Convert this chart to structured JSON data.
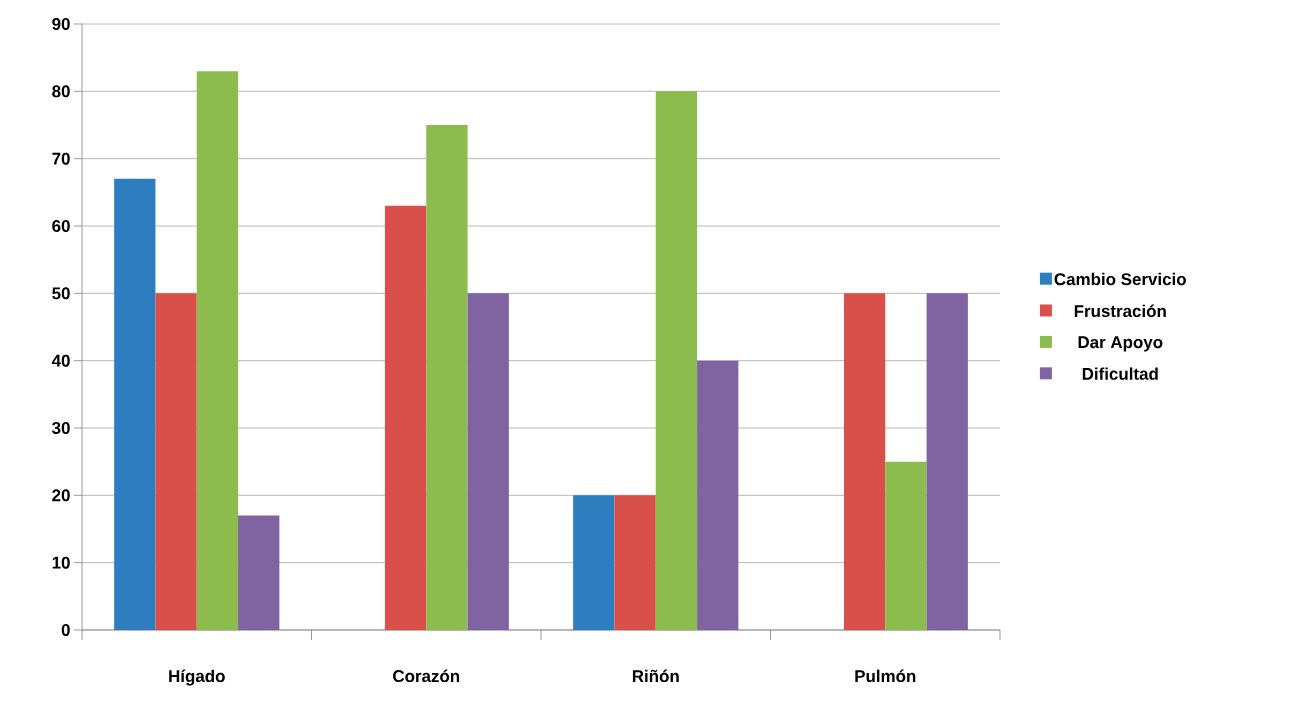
{
  "chart_data": {
    "type": "bar",
    "categories": [
      "Hígado",
      "Corazón",
      "Riñón",
      "Pulmón"
    ],
    "series": [
      {
        "name": "Cambio Servicio",
        "color": "#2e7ebf",
        "values": [
          67,
          null,
          20,
          null
        ]
      },
      {
        "name": "Frustración",
        "color": "#d9504a",
        "values": [
          50,
          63,
          20,
          50
        ]
      },
      {
        "name": "Dar Apoyo",
        "color": "#8cbb4e",
        "values": [
          83,
          75,
          80,
          25
        ]
      },
      {
        "name": "Dificultad",
        "color": "#8064a2",
        "values": [
          17,
          50,
          40,
          50
        ]
      }
    ],
    "ylim": [
      0,
      90
    ],
    "yticks": [
      0,
      10,
      20,
      30,
      40,
      50,
      60,
      70,
      80,
      90
    ],
    "grid": "y",
    "legend": "right"
  }
}
